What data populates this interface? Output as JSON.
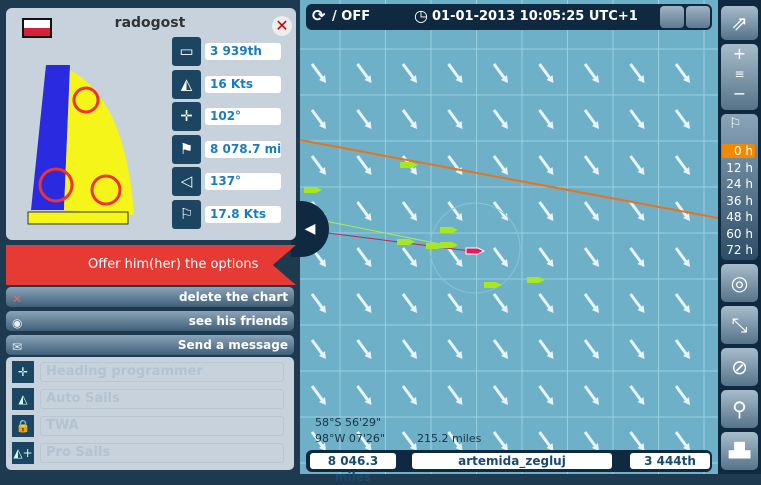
{
  "player": {
    "name": "radogost",
    "flag": "Poland",
    "close_icon": "close-icon",
    "stats": [
      {
        "icon": "ranking-podium-icon",
        "value": "3 939th"
      },
      {
        "icon": "boat-speed-icon",
        "value": "16 Kts"
      },
      {
        "icon": "heading-compass-icon",
        "value": "102°"
      },
      {
        "icon": "distance-flag-icon",
        "value": "8 078.7 miles"
      },
      {
        "icon": "wind-angle-icon",
        "value": "137°"
      },
      {
        "icon": "wind-speed-windsock-icon",
        "value": "17.8 Kts"
      }
    ]
  },
  "banner": {
    "label": "Offer him(her) the options",
    "color": "#e63a34"
  },
  "actions": [
    {
      "label": "delete the chart",
      "icon": "delete-icon"
    },
    {
      "label": "see his friends",
      "icon": "friends-icon"
    },
    {
      "label": "Send a message",
      "icon": "envelope-icon"
    }
  ],
  "disabled_options": [
    {
      "label": "Heading programmer",
      "icon": "heading-icon"
    },
    {
      "label": "Auto Sails",
      "icon": "sails-icon"
    },
    {
      "label": "TWA",
      "icon": "twa-lock-icon"
    },
    {
      "label": "Pro Sails",
      "icon": "pro-sails-icon"
    }
  ],
  "topbar": {
    "sync": "/ OFF",
    "datetime": "01-01-2013 10:05:25 UTC+1"
  },
  "map": {
    "lat": "58°S 56'29\"",
    "lon": "98°W 07'26\"",
    "distance": "215.2 miles",
    "background": "#6db0c8",
    "course_color": "#e8731e"
  },
  "bottombar": {
    "distance": "8 046.3 miles",
    "boat": "artemida_zegluj",
    "rank": "3 444th"
  },
  "forecast": {
    "hours": [
      "0 h",
      "12 h",
      "24 h",
      "36 h",
      "48 h",
      "60 h",
      "72 h"
    ],
    "selected": "0 h"
  }
}
